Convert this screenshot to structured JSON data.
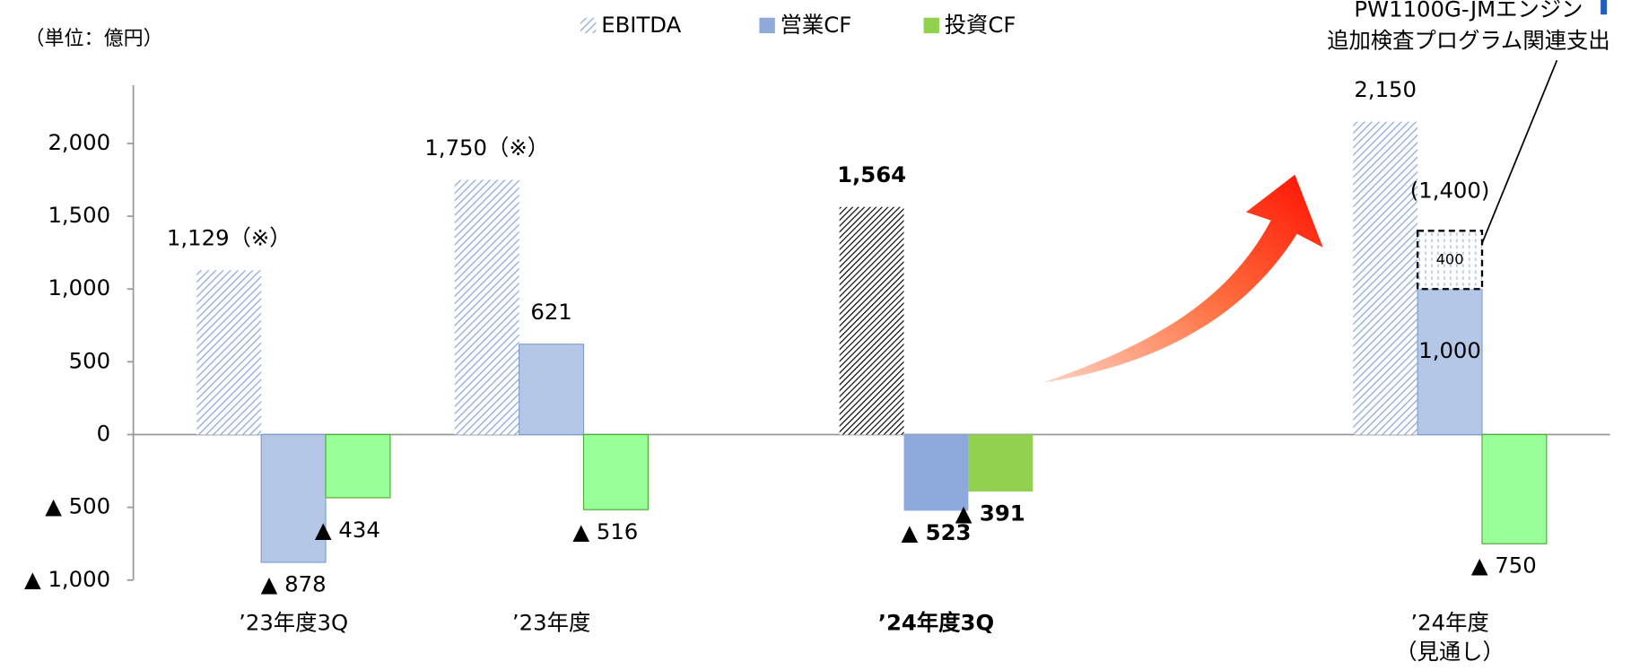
{
  "chart_data": {
    "type": "bar",
    "unit_label": "（単位：億円）",
    "categories": [
      "’23年度3Q",
      "’23年度",
      "’24年度3Q",
      "’24年度\n（見通し）"
    ],
    "emphasis": [
      false,
      false,
      true,
      false
    ],
    "series": [
      {
        "name": "EBITDA",
        "color": "#8eaadb",
        "colors": [
          "#8eaadb",
          "#8eaadb",
          "#000000",
          "#8eaadb"
        ],
        "hatched": true,
        "values": [
          1129,
          1750,
          1564,
          2150
        ],
        "value_labels": [
          "1,129（※）",
          "1,750（※）",
          "1,564",
          "2,150"
        ]
      },
      {
        "name": "営業CF",
        "color": "#8eaadb",
        "colors": [
          "#b4c7e7",
          "#b4c7e7",
          "#8ea9db",
          "#b4c7e7"
        ],
        "hatched": false,
        "values": [
          -878,
          621,
          -523,
          1000
        ],
        "value_labels": [
          "▲ 878",
          "621",
          "▲ 523",
          "1,000"
        ]
      },
      {
        "name": "投資CF",
        "color": "#92d050",
        "colors": [
          "#99ff99",
          "#99ff99",
          "#92d050",
          "#99ff99"
        ],
        "hatched": false,
        "values": [
          -434,
          -516,
          -391,
          -750
        ],
        "value_labels": [
          "▲ 434",
          "▲ 516",
          "▲ 391",
          "▲ 750"
        ]
      }
    ],
    "addition": {
      "series": 1,
      "category": 3,
      "value": 400,
      "value_label": "400",
      "total_label": "(1,400)",
      "note": [
        "PW1100G-JMエンジン",
        "追加検査プログラム関連支出"
      ]
    },
    "ylim": [
      -1000,
      2400
    ],
    "yticks": [
      {
        "value": -1000,
        "label": "▲ 1,000"
      },
      {
        "value": -500,
        "label": "▲ 500"
      },
      0,
      500,
      {
        "value": 1000,
        "label": "1,000"
      },
      {
        "value": 1500,
        "label": "1,500"
      },
      {
        "value": 2000,
        "label": "2,000"
      }
    ]
  }
}
